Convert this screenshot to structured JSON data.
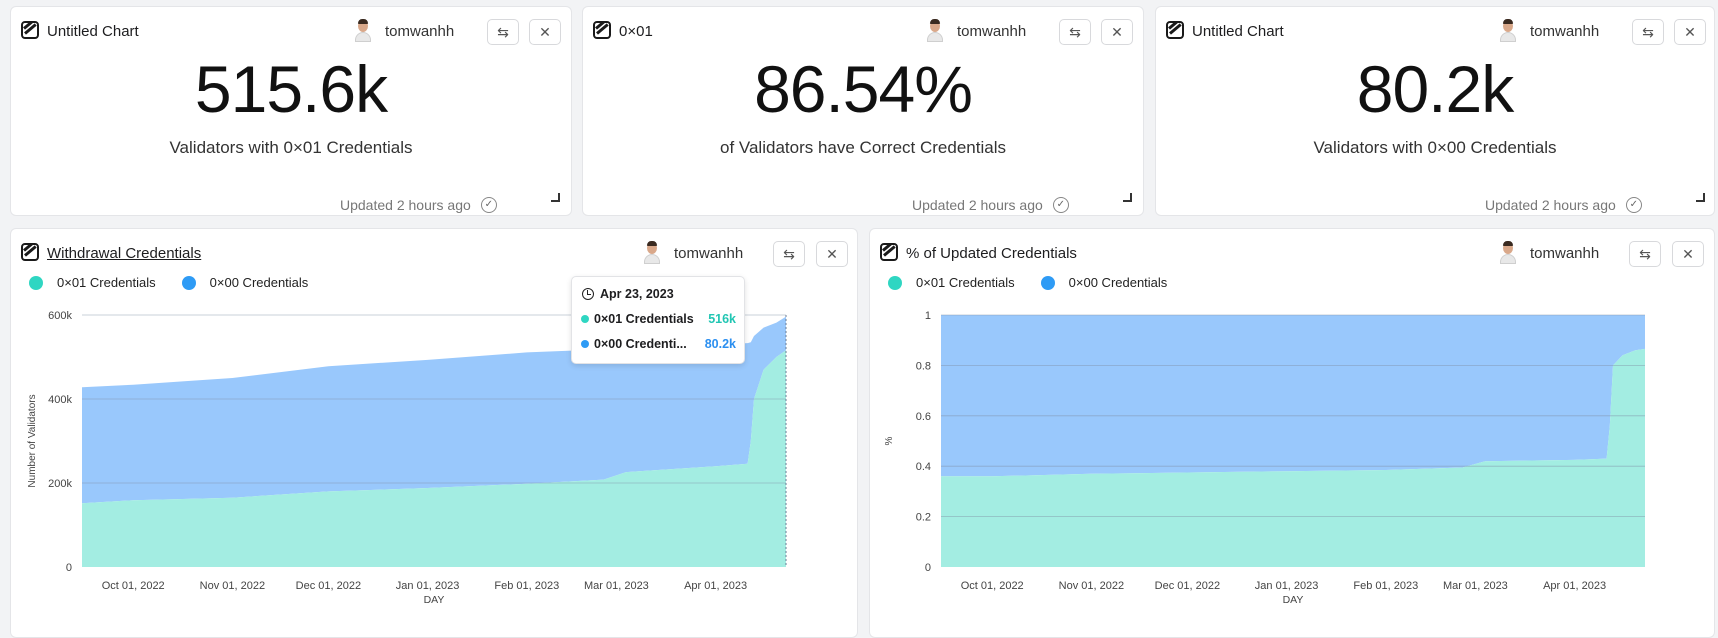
{
  "colors": {
    "c01": "#a3ede2",
    "c01_dot": "#2fd6c2",
    "c00": "#99c8fc",
    "c00_dot": "#2e9bf5",
    "c01_text": "#22c6b3",
    "c00_text": "#2b8ff0"
  },
  "icons": {
    "logo": "chart-logo-icon",
    "swap": "swap-arrows-icon",
    "close": "close-icon",
    "check": "check-circle-icon",
    "clock": "clock-icon",
    "resize": "resize-corner-icon"
  },
  "counter_cards": [
    {
      "title": "Untitled Chart",
      "user": "tomwanhh",
      "value": "515.6k",
      "subtitle": "Validators with 0×01 Credentials",
      "updated": "Updated 2 hours ago"
    },
    {
      "title": "0×01",
      "user": "tomwanhh",
      "value": "86.54%",
      "subtitle": "of Validators have Correct Credentials",
      "updated": "Updated 2 hours ago"
    },
    {
      "title": "Untitled Chart",
      "user": "tomwanhh",
      "value": "80.2k",
      "subtitle": "Validators with 0×00 Credentials",
      "updated": "Updated 2 hours ago"
    }
  ],
  "swap_symbol": "⇆",
  "close_symbol": "✕",
  "check_symbol": "✓",
  "chart_cards": [
    {
      "title": "Withdrawal Credentials",
      "user": "tomwanhh",
      "legend": [
        "0×01 Credentials",
        "0×00 Credentials"
      ],
      "tooltip": {
        "date": "Apr 23, 2023",
        "row1_label": "0×01 Credentials",
        "row1_value": "516k",
        "row2_label": "0×00 Credenti...",
        "row2_value": "80.2k"
      }
    },
    {
      "title": "% of Updated Credentials",
      "user": "tomwanhh",
      "legend": [
        "0×01 Credentials",
        "0×00 Credentials"
      ]
    }
  ],
  "chart_data": [
    {
      "type": "area",
      "stacked": true,
      "ylabel": "Number of Validators",
      "xlabel": "DAY",
      "ylim": [
        0,
        600000
      ],
      "yticks": [
        0,
        200000,
        400000,
        600000
      ],
      "ytick_labels": [
        "0",
        "200k",
        "400k",
        "600k"
      ],
      "xlim": [
        "2022-09-15",
        "2023-04-23"
      ],
      "xticks": [
        "2022-10-01",
        "2022-11-01",
        "2022-12-01",
        "2023-01-01",
        "2023-02-01",
        "2023-03-01",
        "2023-04-01"
      ],
      "xtick_labels": [
        "Oct 01, 2022",
        "Nov 01, 2022",
        "Dec 01, 2022",
        "Jan 01, 2023",
        "Feb 01, 2023",
        "Mar 01, 2023",
        "Apr 01, 2023"
      ],
      "x": [
        "2022-09-15",
        "2022-10-01",
        "2022-11-01",
        "2022-12-01",
        "2023-01-01",
        "2023-02-01",
        "2023-02-25",
        "2023-03-04",
        "2023-04-01",
        "2023-04-11",
        "2023-04-12",
        "2023-04-13",
        "2023-04-16",
        "2023-04-20",
        "2023-04-23"
      ],
      "series": [
        {
          "name": "0×01 Credentials",
          "values": [
            152000,
            159000,
            165000,
            180000,
            188000,
            198000,
            208000,
            226000,
            240000,
            246000,
            300000,
            400000,
            470000,
            500000,
            516000
          ]
        },
        {
          "name": "0×00 Credentials",
          "values": [
            276000,
            275000,
            285000,
            298000,
            305000,
            313000,
            310000,
            295000,
            290000,
            287000,
            235000,
            150000,
            100000,
            82000,
            80200
          ]
        }
      ]
    },
    {
      "type": "area",
      "stacked": true,
      "ylabel": "%",
      "xlabel": "DAY",
      "ylim": [
        0,
        1
      ],
      "yticks": [
        0,
        0.2,
        0.4,
        0.6,
        0.8,
        1
      ],
      "ytick_labels": [
        "0",
        "0.2",
        "0.4",
        "0.6",
        "0.8",
        "1"
      ],
      "xlim": [
        "2022-09-15",
        "2023-04-23"
      ],
      "xticks": [
        "2022-10-01",
        "2022-11-01",
        "2022-12-01",
        "2023-01-01",
        "2023-02-01",
        "2023-03-01",
        "2023-04-01"
      ],
      "xtick_labels": [
        "Oct 01, 2022",
        "Nov 01, 2022",
        "Dec 01, 2022",
        "Jan 01, 2023",
        "Feb 01, 2023",
        "Mar 01, 2023",
        "Apr 01, 2023"
      ],
      "x": [
        "2022-09-15",
        "2022-10-01",
        "2022-11-01",
        "2022-12-01",
        "2023-01-01",
        "2023-02-01",
        "2023-02-25",
        "2023-03-04",
        "2023-04-01",
        "2023-04-11",
        "2023-04-12",
        "2023-04-13",
        "2023-04-16",
        "2023-04-20",
        "2023-04-23"
      ],
      "series": [
        {
          "name": "0×01 Credentials",
          "values": [
            0.36,
            0.36,
            0.37,
            0.375,
            0.38,
            0.385,
            0.395,
            0.42,
            0.425,
            0.43,
            0.56,
            0.8,
            0.84,
            0.86,
            0.8654
          ]
        },
        {
          "name": "0×00 Credentials",
          "values": [
            0.64,
            0.64,
            0.63,
            0.625,
            0.62,
            0.615,
            0.605,
            0.58,
            0.575,
            0.57,
            0.44,
            0.2,
            0.16,
            0.14,
            0.1346
          ]
        }
      ]
    }
  ]
}
